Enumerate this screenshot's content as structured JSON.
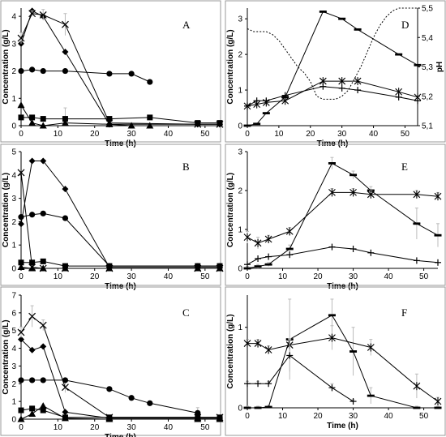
{
  "chart_data": [
    {
      "id": "A",
      "type": "line",
      "panel_label": "A",
      "xlabel": "Time (h)",
      "ylabel": "Concentration (g/L)",
      "xlim": [
        0,
        54
      ],
      "ylim": [
        0,
        4.3
      ],
      "xticks": [
        0,
        10,
        20,
        30,
        40,
        50
      ],
      "yticks": [
        0,
        1,
        2,
        3,
        4
      ],
      "series": [
        {
          "marker": "diamond",
          "x": [
            0,
            3,
            6,
            12,
            24,
            48,
            54
          ],
          "y": [
            3.0,
            4.2,
            4.0,
            2.7,
            0.05,
            0.05,
            0.05
          ]
        },
        {
          "marker": "x",
          "x": [
            0,
            3,
            6,
            12,
            24,
            48,
            54
          ],
          "y": [
            3.2,
            4.1,
            4.05,
            3.7,
            0.1,
            0.05,
            0.05
          ],
          "err": [
            0.2,
            0.1,
            0.2,
            0.4,
            0.1,
            0.05,
            0.05
          ]
        },
        {
          "marker": "circle",
          "x": [
            0,
            3,
            6,
            12,
            24,
            30,
            35
          ],
          "y": [
            2.0,
            2.05,
            2.0,
            2.0,
            1.9,
            1.9,
            1.6
          ]
        },
        {
          "marker": "square",
          "x": [
            0,
            3,
            6,
            12,
            24,
            35,
            48,
            54
          ],
          "y": [
            0.3,
            0.3,
            0.25,
            0.25,
            0.25,
            0.3,
            0.1,
            0.1
          ],
          "err": [
            0.05,
            0.05,
            0.05,
            0.4,
            0.05,
            0.05,
            0.05,
            0.05
          ]
        },
        {
          "marker": "triangle",
          "x": [
            0,
            3,
            6,
            12,
            24,
            30,
            35
          ],
          "y": [
            0.75,
            0.1,
            0.0,
            0.1,
            0.05,
            0.0,
            0.0
          ]
        }
      ]
    },
    {
      "id": "B",
      "type": "line",
      "panel_label": "B",
      "xlabel": "Time (h)",
      "ylabel": "Concentration (g/L)",
      "xlim": [
        0,
        54
      ],
      "ylim": [
        0,
        5.0
      ],
      "xticks": [
        0,
        10,
        20,
        30,
        40,
        50
      ],
      "yticks": [
        0,
        1,
        2,
        3,
        4,
        5
      ],
      "series": [
        {
          "marker": "diamond",
          "x": [
            0,
            3,
            6,
            12,
            24,
            48,
            54
          ],
          "y": [
            1.9,
            4.6,
            4.6,
            3.4,
            0.05,
            0.05,
            0.05
          ]
        },
        {
          "marker": "x",
          "x": [
            0,
            3,
            6,
            12,
            24,
            48,
            54
          ],
          "y": [
            4.1,
            0.05,
            0.0,
            0.0,
            0.0,
            0.0,
            0.0
          ]
        },
        {
          "marker": "circle",
          "x": [
            0,
            3,
            6,
            12,
            24,
            48,
            54
          ],
          "y": [
            2.2,
            2.3,
            2.35,
            2.15,
            0.1,
            0.1,
            0.1
          ]
        },
        {
          "marker": "square",
          "x": [
            0,
            3,
            6,
            12,
            24,
            48,
            54
          ],
          "y": [
            0.25,
            0.25,
            0.3,
            0.1,
            0.1,
            0.1,
            0.1
          ]
        },
        {
          "marker": "triangle",
          "x": [
            0,
            3,
            6,
            12,
            24,
            48,
            54
          ],
          "y": [
            0.05,
            0.0,
            0.0,
            0.0,
            0.0,
            0.0,
            0.0
          ]
        }
      ]
    },
    {
      "id": "C",
      "type": "line",
      "panel_label": "C",
      "xlabel": "Time (h)",
      "ylabel": "Concentration (g/L)",
      "xlim": [
        0,
        54
      ],
      "ylim": [
        0,
        7
      ],
      "xticks": [
        0,
        10,
        20,
        30,
        40,
        50
      ],
      "yticks": [
        0,
        1,
        2,
        3,
        4,
        5,
        6,
        7
      ],
      "series": [
        {
          "marker": "diamond",
          "x": [
            0,
            3,
            6,
            12,
            24,
            48,
            54
          ],
          "y": [
            4.5,
            3.9,
            4.1,
            0.4,
            0.05,
            0.05,
            0.05
          ]
        },
        {
          "marker": "x",
          "x": [
            0,
            3,
            6,
            12,
            24,
            48,
            54
          ],
          "y": [
            4.9,
            5.8,
            5.3,
            1.8,
            0.1,
            0.1,
            0.1
          ],
          "err": [
            0.3,
            0.6,
            0.3,
            0.3,
            0.1,
            0.1,
            0.1
          ]
        },
        {
          "marker": "circle",
          "x": [
            0,
            3,
            6,
            12,
            24,
            30,
            35,
            48
          ],
          "y": [
            2.2,
            2.2,
            2.2,
            2.2,
            1.7,
            1.2,
            0.9,
            0.35
          ],
          "err": [
            0.1,
            0.1,
            0.1,
            0.1,
            0.1,
            0.1,
            0.1,
            0.3
          ]
        },
        {
          "marker": "square",
          "x": [
            0,
            3,
            6,
            12,
            24,
            48,
            54
          ],
          "y": [
            0.5,
            0.6,
            0.5,
            0.1,
            0.1,
            0.1,
            0.1
          ]
        },
        {
          "marker": "triangle",
          "x": [
            0,
            3,
            6,
            12,
            24,
            48,
            54
          ],
          "y": [
            0.0,
            0.3,
            0.75,
            0.05,
            0.0,
            0.0,
            0.0
          ]
        }
      ]
    },
    {
      "id": "D",
      "type": "line",
      "panel_label": "D",
      "xlabel": "Time (h)",
      "ylabel": "Concentration (g/L)",
      "ylabel_right": "pH",
      "xlim": [
        0,
        54
      ],
      "ylim": [
        0,
        3.3
      ],
      "ylim_right": [
        5.1,
        5.5
      ],
      "xticks": [
        0,
        10,
        20,
        30,
        40,
        50
      ],
      "yticks": [
        0,
        1,
        2,
        3
      ],
      "yticks_right": [
        "5,1",
        "5,2",
        "5,3",
        "5,4",
        "5,5"
      ],
      "series": [
        {
          "marker": "dash",
          "x": [
            0,
            3,
            6,
            12,
            24,
            30,
            35,
            48,
            54
          ],
          "y": [
            0.0,
            0.05,
            0.35,
            0.8,
            3.2,
            3.0,
            2.7,
            2.0,
            1.7
          ]
        },
        {
          "marker": "asterisk",
          "x": [
            0,
            3,
            6,
            12,
            24,
            30,
            35,
            48,
            54
          ],
          "y": [
            0.55,
            0.6,
            0.65,
            0.7,
            1.25,
            1.25,
            1.25,
            0.95,
            0.8
          ]
        },
        {
          "marker": "plus",
          "x": [
            0,
            3,
            6,
            12,
            24,
            30,
            35,
            48,
            54
          ],
          "y": [
            0.55,
            0.7,
            0.7,
            0.85,
            1.1,
            1.05,
            1.0,
            0.8,
            0.7
          ]
        },
        {
          "axis": "right",
          "style": "dotted",
          "x": [
            0,
            2,
            4,
            6,
            8,
            10,
            12,
            14,
            16,
            18,
            20,
            22,
            24,
            26,
            28,
            30,
            32,
            34,
            36,
            38,
            40,
            42,
            44,
            46,
            48,
            50,
            52,
            54
          ],
          "y": [
            5.43,
            5.42,
            5.42,
            5.42,
            5.41,
            5.39,
            5.36,
            5.33,
            5.3,
            5.28,
            5.25,
            5.2,
            5.19,
            5.19,
            5.19,
            5.2,
            5.22,
            5.26,
            5.3,
            5.35,
            5.4,
            5.44,
            5.47,
            5.49,
            5.5,
            5.5,
            5.5,
            5.5
          ]
        }
      ]
    },
    {
      "id": "E",
      "type": "line",
      "panel_label": "E",
      "xlabel": "Time (h)",
      "ylabel": "Concentration (g/L)",
      "xlim": [
        0,
        54
      ],
      "ylim": [
        0,
        3
      ],
      "xticks": [
        0,
        10,
        20,
        30,
        40,
        50
      ],
      "yticks": [
        0,
        1,
        2,
        3
      ],
      "series": [
        {
          "marker": "dash",
          "x": [
            0,
            3,
            6,
            12,
            24,
            30,
            35,
            48,
            54
          ],
          "y": [
            0.0,
            0.05,
            0.1,
            0.5,
            2.7,
            2.4,
            2.0,
            1.15,
            0.85
          ],
          "err": [
            0.05,
            0.05,
            0.05,
            0.1,
            0.15,
            0.1,
            0.1,
            0.4,
            0.3
          ]
        },
        {
          "marker": "asterisk",
          "x": [
            0,
            3,
            6,
            12,
            24,
            30,
            35,
            48,
            54
          ],
          "y": [
            0.8,
            0.65,
            0.75,
            0.95,
            1.95,
            1.95,
            1.9,
            1.9,
            1.85
          ],
          "err": [
            0.15,
            0.15,
            0.1,
            0.1,
            0.1,
            0.1,
            0.1,
            0.1,
            0.1
          ]
        },
        {
          "marker": "plus",
          "x": [
            0,
            3,
            6,
            12,
            24,
            30,
            35,
            48,
            54
          ],
          "y": [
            0.1,
            0.25,
            0.3,
            0.35,
            0.55,
            0.5,
            0.4,
            0.2,
            0.15
          ]
        }
      ]
    },
    {
      "id": "F",
      "type": "line",
      "panel_label": "F",
      "xlabel": "Time (h)",
      "ylabel": "Concentration (g/L)",
      "xlim": [
        0,
        54
      ],
      "ylim": [
        0,
        1.4
      ],
      "xticks": [
        0,
        10,
        20,
        30,
        40,
        50
      ],
      "yticks": [
        0,
        1
      ],
      "series": [
        {
          "marker": "dash",
          "x": [
            0,
            3,
            6,
            12,
            24,
            30,
            35,
            48,
            54
          ],
          "y": [
            0.0,
            0.0,
            0.01,
            0.85,
            1.15,
            0.7,
            0.15,
            0.0,
            0.0
          ],
          "err": [
            0.02,
            0.02,
            0.02,
            0.5,
            0.2,
            0.3,
            0.1,
            0.02,
            0.02
          ]
        },
        {
          "marker": "asterisk",
          "x": [
            0,
            3,
            6,
            12,
            24,
            35,
            48,
            54
          ],
          "y": [
            0.8,
            0.8,
            0.72,
            0.78,
            0.87,
            0.75,
            0.27,
            0.08
          ],
          "err": [
            0.05,
            0.05,
            0.05,
            0.08,
            0.15,
            0.1,
            0.15,
            0.05
          ]
        },
        {
          "marker": "plus",
          "x": [
            0,
            3,
            6,
            12,
            24,
            30
          ],
          "y": [
            0.3,
            0.3,
            0.3,
            0.65,
            0.25,
            0.08
          ],
          "err": [
            0.03,
            0.03,
            0.03,
            0.2,
            0.05,
            0.02
          ]
        }
      ]
    }
  ]
}
